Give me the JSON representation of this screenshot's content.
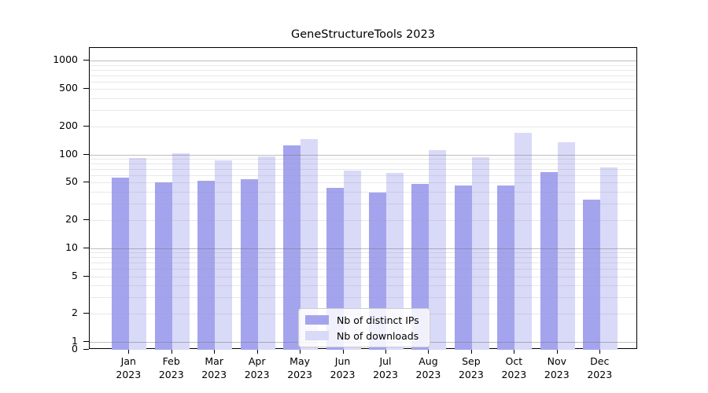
{
  "title": "GeneStructureTools 2023",
  "colors": {
    "bar_ips": "#a4a4ee",
    "bar_downloads": "#d9d9f8",
    "grid_major": "rgba(110,110,110,0.45)",
    "grid_minor": "rgba(150,150,150,0.22)",
    "axis": "#000000",
    "legend_border": "#cccccc",
    "legend_bg": "rgba(255,255,255,0.85)"
  },
  "chart_data": {
    "type": "bar",
    "title": "GeneStructureTools 2023",
    "x_categories": [
      "Jan",
      "Feb",
      "Mar",
      "Apr",
      "May",
      "Jun",
      "Jul",
      "Aug",
      "Sep",
      "Oct",
      "Nov",
      "Dec"
    ],
    "x_year": "2023",
    "x_tick_labels": [
      "Jan 2023",
      "Feb 2023",
      "Mar 2023",
      "Apr 2023",
      "May 2023",
      "Jun 2023",
      "Jul 2023",
      "Aug 2023",
      "Sep 2023",
      "Oct 2023",
      "Nov 2023",
      "Dec 2023"
    ],
    "series": [
      {
        "name": "Nb of distinct IPs",
        "color_key": "bar_ips",
        "values": [
          57,
          50,
          52,
          55,
          126,
          44,
          39,
          49,
          47,
          47,
          65,
          33
        ]
      },
      {
        "name": "Nb of downloads",
        "color_key": "bar_downloads",
        "values": [
          92,
          103,
          86,
          95,
          145,
          67,
          64,
          111,
          93,
          170,
          135,
          73
        ]
      }
    ],
    "y_scale": "symlog",
    "y_ticks": [
      1000,
      500,
      200,
      100,
      50,
      20,
      10,
      5,
      2,
      1,
      0
    ],
    "ylim": [
      0,
      1380
    ],
    "grid": {
      "major_lines": [
        1,
        10,
        100,
        1000
      ],
      "minor_lines": "2-9 per decade",
      "drawn_over_bars": true
    },
    "legend": {
      "position": "lower-center",
      "entries": [
        "Nb of distinct IPs",
        "Nb of downloads"
      ]
    }
  }
}
